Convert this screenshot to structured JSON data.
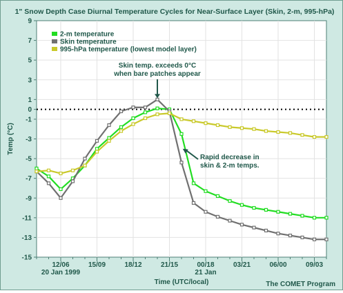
{
  "chart_data": {
    "type": "line",
    "title": "1\" Snow Depth Case Diurnal Temperature Cycles for Near-Surface Layer (Skin, 2-m, 995-hPa)",
    "xlabel": "Time (UTC/local)",
    "ylabel": "Temp (°C)",
    "ylim": [
      -15,
      9
    ],
    "y_ticks": [
      9,
      7,
      5,
      3,
      1,
      0,
      -1,
      -3,
      -5,
      -7,
      -9,
      -11,
      -13,
      -15
    ],
    "x_ticks": [
      {
        "t": 2,
        "label": "12/06"
      },
      {
        "t": 5,
        "label": "15/09"
      },
      {
        "t": 8,
        "label": "18/12"
      },
      {
        "t": 11,
        "label": "21/15"
      },
      {
        "t": 14,
        "label": "00/18"
      },
      {
        "t": 17,
        "label": "03/21"
      },
      {
        "t": 20,
        "label": "06/00"
      },
      {
        "t": 23,
        "label": "09/03"
      }
    ],
    "date_labels": [
      {
        "t": 2,
        "label": "20 Jan 1999"
      },
      {
        "t": 14,
        "label": "21 Jan"
      }
    ],
    "xlim": [
      0,
      24
    ],
    "grid": true,
    "zero_line": true,
    "legend_position": "top-left",
    "series": [
      {
        "name": "2-m temperature",
        "color": "#22dd22",
        "x": [
          0,
          1,
          2,
          3,
          4,
          5,
          6,
          7,
          8,
          9,
          10,
          11,
          12,
          13,
          14,
          15,
          16,
          17,
          18,
          19,
          20,
          21,
          22,
          23,
          24
        ],
        "values": [
          -6.0,
          -6.8,
          -8.1,
          -7.0,
          -5.7,
          -4.0,
          -2.9,
          -1.8,
          -0.9,
          -0.3,
          0.1,
          0.0,
          -2.5,
          -7.5,
          -8.3,
          -8.8,
          -9.3,
          -9.7,
          -10.0,
          -10.2,
          -10.4,
          -10.6,
          -10.8,
          -11.0,
          -11.0
        ]
      },
      {
        "name": "Skin temperature",
        "color": "#707070",
        "x": [
          0,
          1,
          2,
          3,
          4,
          5,
          6,
          7,
          8,
          9,
          10,
          11,
          12,
          13,
          14,
          15,
          16,
          17,
          18,
          19,
          20,
          21,
          22,
          23,
          24
        ],
        "values": [
          -6.3,
          -7.5,
          -9.0,
          -7.3,
          -5.0,
          -3.2,
          -1.6,
          -0.2,
          0.2,
          0.2,
          1.0,
          -0.2,
          -5.4,
          -9.5,
          -10.4,
          -10.9,
          -11.3,
          -11.7,
          -12.0,
          -12.3,
          -12.6,
          -12.8,
          -13.0,
          -13.2,
          -13.2
        ]
      },
      {
        "name": "995-hPa temperature (lowest model layer)",
        "color": "#c9c92a",
        "x": [
          0,
          1,
          2,
          3,
          4,
          5,
          6,
          7,
          8,
          9,
          10,
          11,
          12,
          13,
          14,
          15,
          16,
          17,
          18,
          19,
          20,
          21,
          22,
          23,
          24
        ],
        "values": [
          -6.3,
          -6.2,
          -6.5,
          -6.2,
          -5.7,
          -4.3,
          -3.2,
          -2.2,
          -1.5,
          -0.9,
          -0.5,
          -0.4,
          -1.0,
          -1.2,
          -1.4,
          -1.6,
          -1.8,
          -1.9,
          -2.0,
          -2.2,
          -2.3,
          -2.4,
          -2.6,
          -2.8,
          -2.8
        ]
      }
    ],
    "annotations": [
      {
        "lines": [
          "Skin temp. exceeds 0°C",
          "when bare patches appear"
        ],
        "target_t": 10,
        "target_y": 1.0
      },
      {
        "lines": [
          "Rapid decrease in",
          "skin & 2-m temps."
        ],
        "target_t": 12.1,
        "target_y": -4.0
      }
    ],
    "credit": "The COMET Program"
  }
}
